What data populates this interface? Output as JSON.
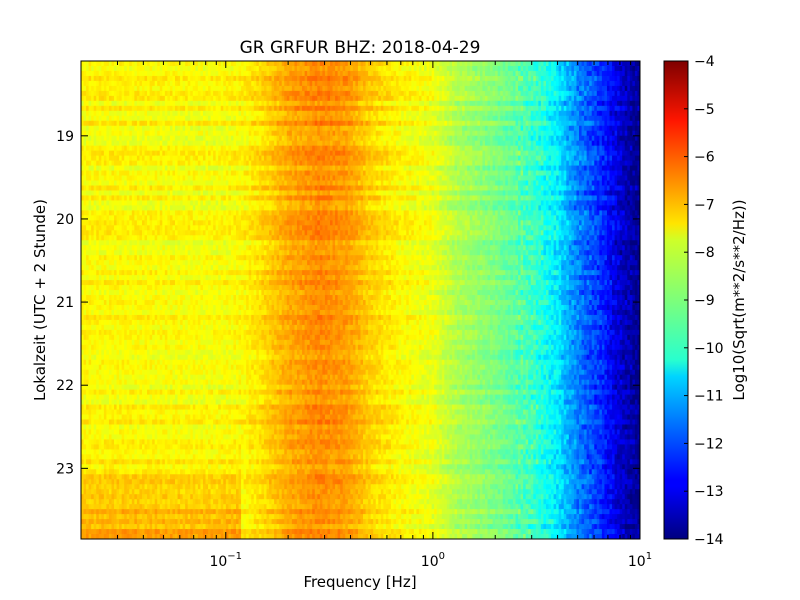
{
  "chart_data": {
    "type": "heatmap",
    "title": "GR GRFUR BHZ: 2018-04-29",
    "xlabel": "Frequency [Hz]",
    "ylabel": "Lokalzeit (UTC + 2 Stunde)",
    "x_scale": "log",
    "xlim": [
      0.02,
      10
    ],
    "ylim": [
      23.85,
      18.1
    ],
    "x_ticks": [
      {
        "value": 0.1,
        "base": "10",
        "exp": "−1"
      },
      {
        "value": 1,
        "base": "10",
        "exp": "0"
      },
      {
        "value": 10,
        "base": "10",
        "exp": "1"
      }
    ],
    "y_ticks": [
      19,
      20,
      21,
      22,
      23
    ],
    "colorbar": {
      "label": "Log10(Sqrt(m**2/s**2/Hz))",
      "range": [
        -14,
        -4
      ],
      "ticks": [
        -4,
        -5,
        -6,
        -7,
        -8,
        -9,
        -10,
        -11,
        -12,
        -13,
        -14
      ],
      "colormap": "jet"
    },
    "spectrum_profile": {
      "frequency_hz": [
        0.02,
        0.05,
        0.09,
        0.12,
        0.15,
        0.2,
        0.28,
        0.38,
        0.5,
        0.7,
        1.0,
        1.3,
        2.0,
        3.0,
        4.0,
        5.0,
        6.5,
        8.0,
        10.0
      ],
      "level": [
        -7.7,
        -7.75,
        -7.8,
        -7.7,
        -7.4,
        -6.9,
        -6.6,
        -6.75,
        -7.3,
        -7.7,
        -7.95,
        -8.5,
        -9.0,
        -9.6,
        -10.4,
        -11.5,
        -12.3,
        -13.2,
        -13.9
      ]
    }
  }
}
